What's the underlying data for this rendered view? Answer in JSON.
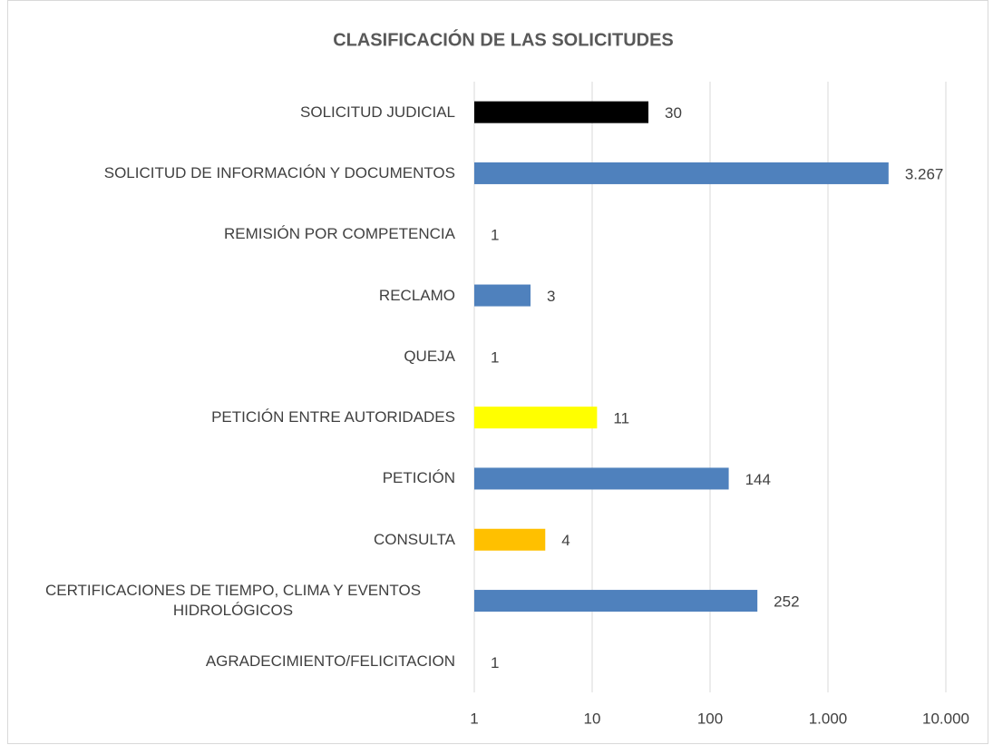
{
  "chart_data": {
    "type": "bar",
    "orientation": "horizontal",
    "title": "CLASIFICACIÓN DE LAS SOLICITUDES",
    "categories": [
      "SOLICITUD JUDICIAL",
      "SOLICITUD DE INFORMACIÓN Y DOCUMENTOS",
      "REMISIÓN POR COMPETENCIA",
      "RECLAMO",
      "QUEJA",
      "PETICIÓN ENTRE AUTORIDADES",
      "PETICIÓN",
      "CONSULTA",
      "CERTIFICACIONES DE TIEMPO, CLIMA Y EVENTOS HIDROLÓGICOS",
      "AGRADECIMIENTO/FELICITACION"
    ],
    "values": [
      30,
      3267,
      1,
      3,
      1,
      11,
      144,
      4,
      252,
      1
    ],
    "value_labels": [
      "30",
      "3.267",
      "1",
      "3",
      "1",
      "11",
      "144",
      "4",
      "252",
      "1"
    ],
    "colors": [
      "#000000",
      "#4f81bd",
      "#4f81bd",
      "#4f81bd",
      "#4f81bd",
      "#ffff00",
      "#4f81bd",
      "#ffc000",
      "#4f81bd",
      "#4f81bd"
    ],
    "xscale": "log",
    "xlim": [
      1,
      10000
    ],
    "xticks": [
      1,
      10,
      100,
      {
        "value": 1000,
        "label": "1.000"
      },
      {
        "value": 10000,
        "label": "10.000"
      }
    ],
    "grid": true
  }
}
